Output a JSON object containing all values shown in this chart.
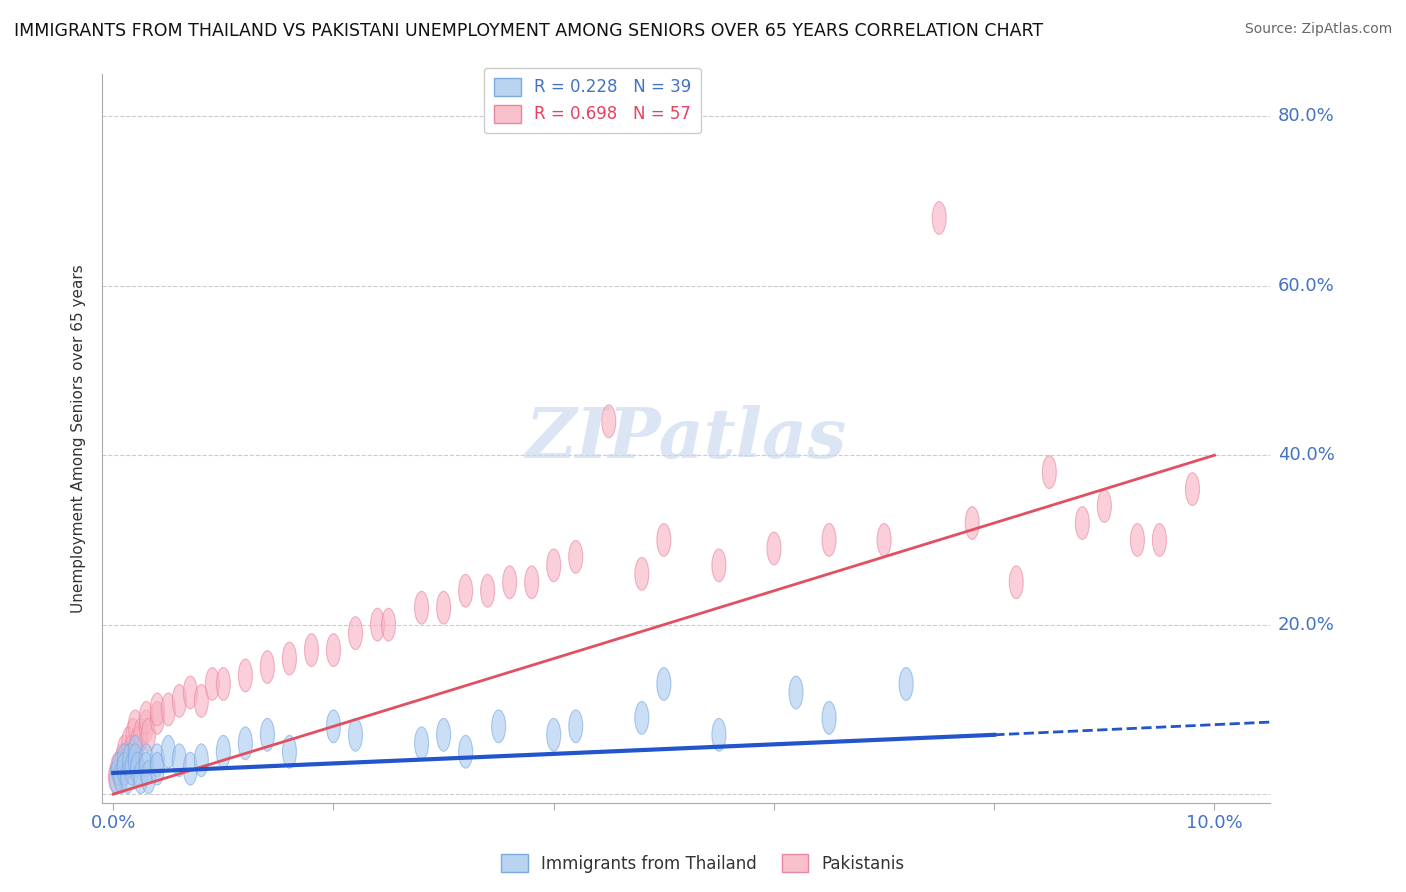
{
  "title": "IMMIGRANTS FROM THAILAND VS PAKISTANI UNEMPLOYMENT AMONG SENIORS OVER 65 YEARS CORRELATION CHART",
  "source": "Source: ZipAtlas.com",
  "ylabel_label": "Unemployment Among Seniors over 65 years",
  "xlim": [
    -0.001,
    0.105
  ],
  "ylim": [
    -0.01,
    0.85
  ],
  "x_ticks": [
    0.0,
    0.02,
    0.04,
    0.06,
    0.08,
    0.1
  ],
  "x_tick_labels": [
    "0.0%",
    "",
    "",
    "",
    "",
    "10.0%"
  ],
  "y_ticks": [
    0.0,
    0.2,
    0.4,
    0.6,
    0.8
  ],
  "y_tick_labels": [
    "",
    "20.0%",
    "40.0%",
    "60.0%",
    "80.0%"
  ],
  "background_color": "#ffffff",
  "grid_color": "#cccccc",
  "tick_label_color": "#4472c4",
  "thai_line_color": "#2255cc",
  "pak_line_color": "#e05060",
  "thai_marker_facecolor": "#a8c8f0",
  "thai_marker_edgecolor": "#7aaae0",
  "pak_marker_facecolor": "#f8b0c0",
  "pak_marker_edgecolor": "#e888a0",
  "thai_scatter_x": [
    0.0003,
    0.0005,
    0.0007,
    0.001,
    0.001,
    0.0013,
    0.0015,
    0.0017,
    0.002,
    0.002,
    0.0022,
    0.0025,
    0.003,
    0.003,
    0.0032,
    0.004,
    0.004,
    0.005,
    0.006,
    0.007,
    0.008,
    0.01,
    0.012,
    0.014,
    0.016,
    0.02,
    0.022,
    0.028,
    0.03,
    0.032,
    0.035,
    0.04,
    0.042,
    0.048,
    0.05,
    0.055,
    0.062,
    0.065,
    0.072
  ],
  "thai_scatter_y": [
    0.02,
    0.03,
    0.02,
    0.04,
    0.03,
    0.02,
    0.04,
    0.03,
    0.05,
    0.04,
    0.03,
    0.02,
    0.04,
    0.03,
    0.02,
    0.04,
    0.03,
    0.05,
    0.04,
    0.03,
    0.04,
    0.05,
    0.06,
    0.07,
    0.05,
    0.08,
    0.07,
    0.06,
    0.07,
    0.05,
    0.08,
    0.07,
    0.08,
    0.09,
    0.13,
    0.07,
    0.12,
    0.09,
    0.13
  ],
  "pak_scatter_x": [
    0.0002,
    0.0004,
    0.0006,
    0.0008,
    0.001,
    0.001,
    0.0012,
    0.0014,
    0.0016,
    0.0018,
    0.002,
    0.002,
    0.0022,
    0.0025,
    0.003,
    0.003,
    0.0032,
    0.004,
    0.004,
    0.005,
    0.006,
    0.007,
    0.008,
    0.009,
    0.01,
    0.012,
    0.014,
    0.016,
    0.018,
    0.02,
    0.022,
    0.024,
    0.025,
    0.028,
    0.03,
    0.032,
    0.034,
    0.036,
    0.038,
    0.04,
    0.042,
    0.045,
    0.048,
    0.05,
    0.055,
    0.06,
    0.065,
    0.07,
    0.075,
    0.078,
    0.082,
    0.085,
    0.088,
    0.09,
    0.093,
    0.095,
    0.098
  ],
  "pak_scatter_y": [
    0.02,
    0.03,
    0.025,
    0.04,
    0.03,
    0.05,
    0.04,
    0.06,
    0.05,
    0.07,
    0.05,
    0.08,
    0.06,
    0.07,
    0.08,
    0.09,
    0.07,
    0.09,
    0.1,
    0.1,
    0.11,
    0.12,
    0.11,
    0.13,
    0.13,
    0.14,
    0.15,
    0.16,
    0.17,
    0.17,
    0.19,
    0.2,
    0.2,
    0.22,
    0.22,
    0.24,
    0.24,
    0.25,
    0.25,
    0.27,
    0.28,
    0.44,
    0.26,
    0.3,
    0.27,
    0.29,
    0.3,
    0.3,
    0.68,
    0.32,
    0.25,
    0.38,
    0.32,
    0.34,
    0.3,
    0.3,
    0.36
  ],
  "thai_line_x0": 0.0,
  "thai_line_y0": 0.025,
  "thai_line_x1": 0.08,
  "thai_line_y1": 0.07,
  "thai_line_x2": 0.105,
  "thai_line_y2": 0.085,
  "pak_line_x0": 0.0,
  "pak_line_y0": 0.0,
  "pak_line_x1": 0.1,
  "pak_line_y1": 0.4,
  "legend_R_thai": "R = 0.228",
  "legend_N_thai": "N = 39",
  "legend_R_pak": "R = 0.698",
  "legend_N_pak": "N = 57",
  "legend_label_thai": "Immigrants from Thailand",
  "legend_label_pak": "Pakistanis"
}
